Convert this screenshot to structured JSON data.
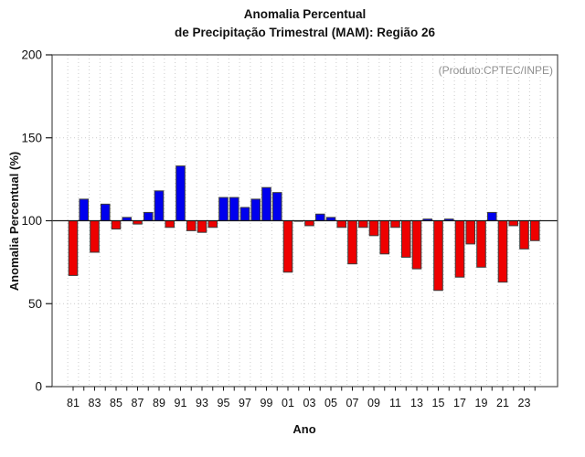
{
  "chart_data": {
    "type": "bar",
    "title_line1": "Anomalia Percentual",
    "title_line2": "de Precipitação Trimestral (MAM): Região 26",
    "ylabel": "Anomalia Percentual (%)",
    "xlabel": "Ano",
    "annotation": "(Produto:CPTEC/INPE)",
    "baseline": 100,
    "ylim": [
      0,
      200
    ],
    "yticks": [
      0,
      50,
      100,
      150,
      200
    ],
    "grid_yticks": [
      50,
      100,
      150
    ],
    "xtick_labels": [
      "81",
      "83",
      "85",
      "87",
      "89",
      "91",
      "93",
      "95",
      "97",
      "99",
      "01",
      "03",
      "05",
      "07",
      "09",
      "11",
      "13",
      "15",
      "17",
      "19",
      "21",
      "23"
    ],
    "categories": [
      "81",
      "82",
      "83",
      "84",
      "85",
      "86",
      "87",
      "88",
      "89",
      "90",
      "91",
      "92",
      "93",
      "94",
      "95",
      "96",
      "97",
      "98",
      "99",
      "00",
      "01",
      "02",
      "03",
      "04",
      "05",
      "06",
      "07",
      "08",
      "09",
      "10",
      "11",
      "12",
      "13",
      "14",
      "15",
      "16",
      "17",
      "18",
      "19",
      "20",
      "21",
      "22",
      "23",
      "24"
    ],
    "values": [
      67,
      113,
      81,
      110,
      95,
      102,
      98,
      105,
      118,
      96,
      133,
      94,
      93,
      96,
      114,
      114,
      108,
      113,
      120,
      117,
      69,
      100,
      97,
      104,
      102,
      96,
      74,
      96,
      91,
      80,
      96,
      78,
      71,
      101,
      58,
      101,
      66,
      86,
      72,
      105,
      63,
      97,
      83,
      88
    ],
    "legend_position": "none",
    "grid": "dotted",
    "colors": {
      "above_baseline": "#0000ee",
      "below_baseline": "#ee0000",
      "bar_outline": "#3c3c3c",
      "grid": "#cccccc",
      "axis": "#4d4d4d",
      "baseline_line": "#1a1a1a",
      "tick_text": "#111111",
      "annotation_text": "#8f8f8f"
    }
  }
}
